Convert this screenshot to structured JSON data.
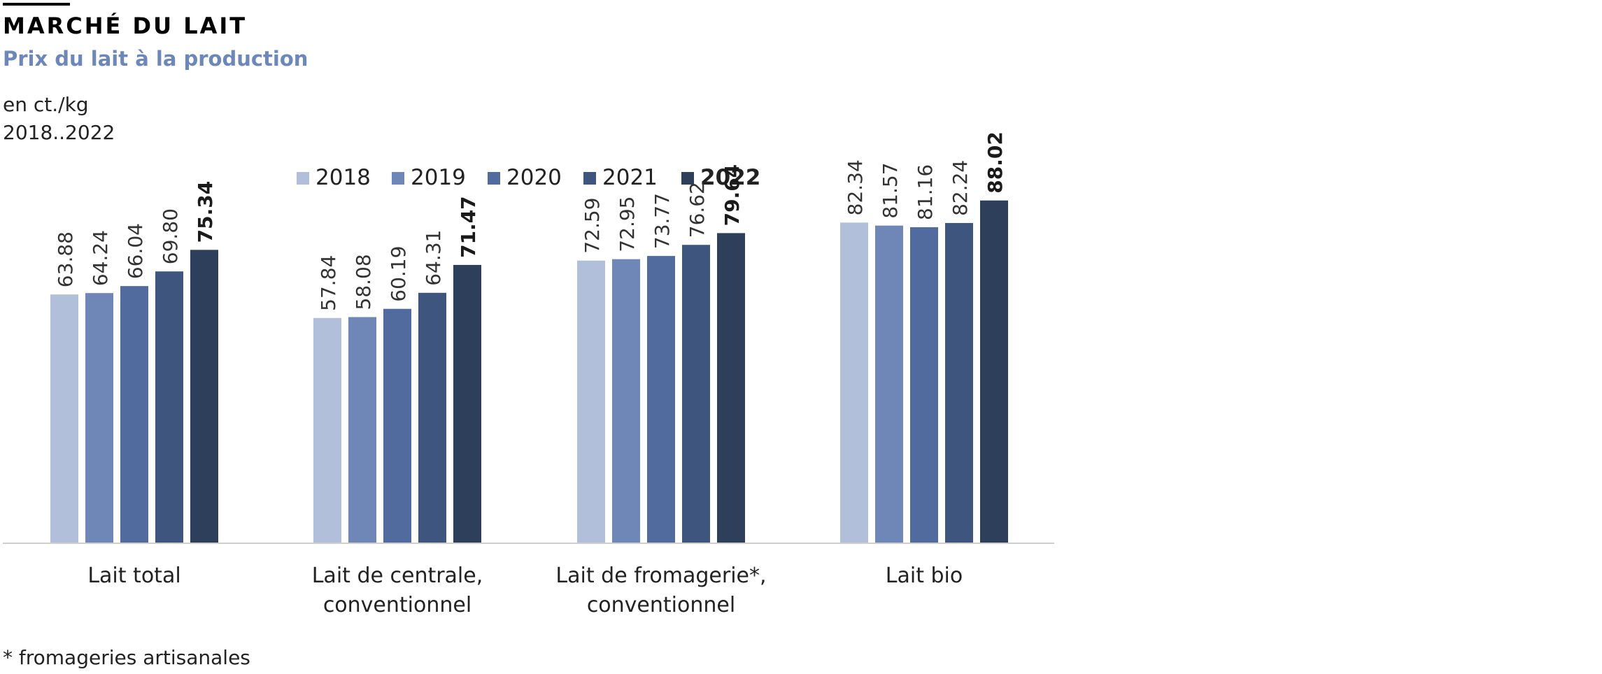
{
  "header": {
    "title": "MARCHÉ DU LAIT",
    "subtitle": "Prix du lait à la production",
    "unit": "en ct./kg",
    "period": "2018..2022"
  },
  "footnote": "* fromageries artisanales",
  "chart_data": {
    "type": "bar",
    "title": "",
    "xlabel": "",
    "ylabel": "",
    "ylim": [
      0,
      100
    ],
    "grid": false,
    "legend": "top",
    "categories": [
      [
        "Lait total"
      ],
      [
        "Lait de centrale,",
        "conventionnel"
      ],
      [
        "Lait de fromagerie*,",
        "conventionnel"
      ],
      [
        "Lait bio"
      ]
    ],
    "series": [
      {
        "name": "2018",
        "color": "#b2bfdb",
        "values": [
          "63.88",
          "57.84",
          "72.59",
          "82.34"
        ]
      },
      {
        "name": "2019",
        "color": "#6e87b7",
        "values": [
          "64.24",
          "58.08",
          "72.95",
          "81.57"
        ]
      },
      {
        "name": "2020",
        "color": "#516b9f",
        "values": [
          "66.04",
          "60.19",
          "73.77",
          "81.16"
        ]
      },
      {
        "name": "2021",
        "color": "#3e557d",
        "values": [
          "69.80",
          "64.31",
          "76.62",
          "82.24"
        ]
      },
      {
        "name": "2022",
        "color": "#2e3f5c",
        "values": [
          "75.34",
          "71.47",
          "79.64",
          "88.02"
        ]
      }
    ]
  }
}
